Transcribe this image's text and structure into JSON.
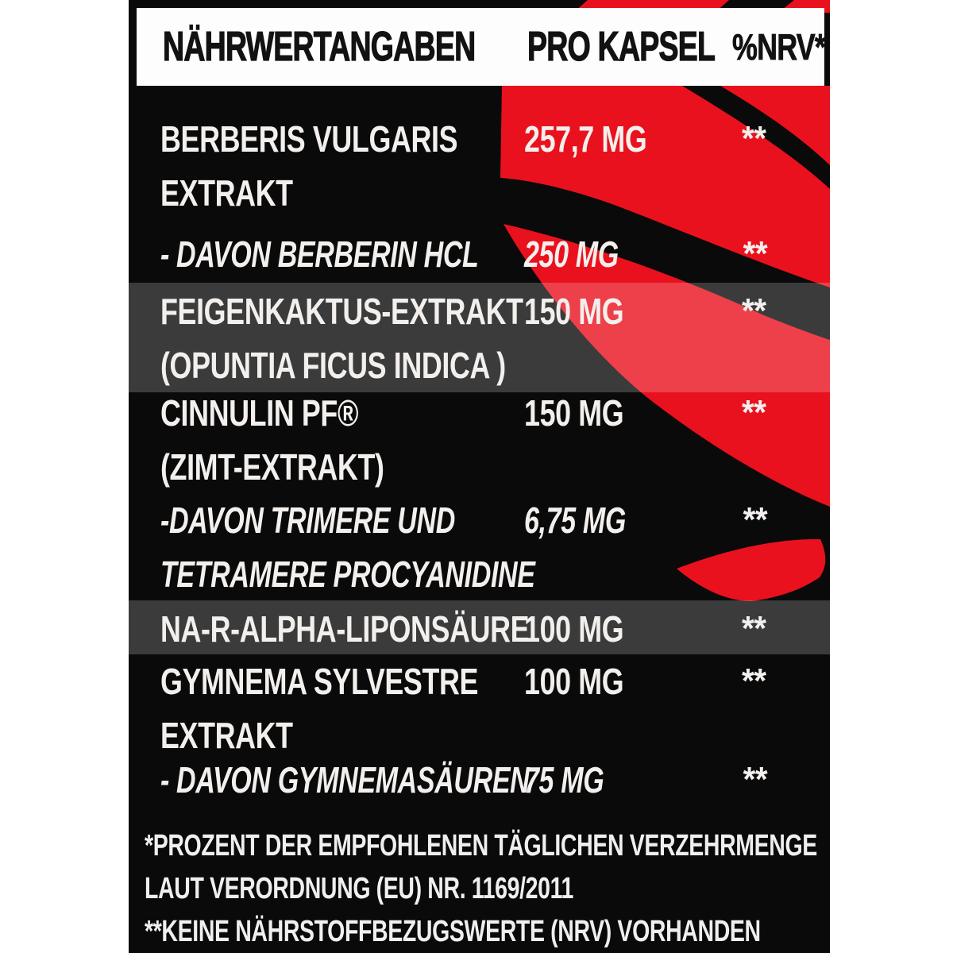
{
  "header": {
    "col_nutrient": "NÄHRWERTANGABEN",
    "col_amount": "PRO KAPSEL",
    "col_nrv": "%NRV*"
  },
  "table": {
    "rows": [
      {
        "name_lines": [
          "BERBERIS VULGARIS",
          "EXTRAKT"
        ],
        "amount": "257,7 MG",
        "nrv": "**",
        "style": "bold",
        "highlight": false
      },
      {
        "name_lines": [
          "- DAVON BERBERIN HCL"
        ],
        "amount": "250 MG",
        "nrv": "**",
        "style": "italic",
        "highlight": false
      },
      {
        "name_lines": [
          "FEIGENKAKTUS-EXTRAKT",
          "(OPUNTIA FICUS INDICA )"
        ],
        "amount": "150 MG",
        "nrv": "**",
        "style": "bold",
        "highlight": true
      },
      {
        "name_lines": [
          "CINNULIN PF®",
          "(ZIMT-EXTRAKT)"
        ],
        "amount": "150 MG",
        "nrv": "**",
        "style": "bold",
        "highlight": false
      },
      {
        "name_lines": [
          "-DAVON TRIMERE UND",
          "TETRAMERE PROCYANIDINE"
        ],
        "amount": "6,75 MG",
        "nrv": "**",
        "style": "italic",
        "highlight": false
      },
      {
        "name_lines": [
          "NA-R-ALPHA-LIPONSÄURE"
        ],
        "amount": "100 MG",
        "nrv": "**",
        "style": "bold",
        "highlight": true
      },
      {
        "name_lines": [
          "GYMNEMA SYLVESTRE",
          "EXTRAKT"
        ],
        "amount": "100 MG",
        "nrv": "**",
        "style": "bold",
        "highlight": false
      },
      {
        "name_lines": [
          "- DAVON GYMNEMASÄUREN"
        ],
        "amount": "75 MG",
        "nrv": "**",
        "style": "italic",
        "highlight": false
      }
    ]
  },
  "footnotes": [
    "*PROZENT DER EMPFOHLENEN TÄGLICHEN VERZEHRMENGE",
    "LAUT VERORDNUNG (EU) NR. 1169/2011",
    "**KEINE NÄHRSTOFFBEZUGSWERTE (NRV) VORHANDEN"
  ],
  "icons": {
    "artwork": "red-petal-burst"
  },
  "colors": {
    "accent_red": "#e9111d",
    "label_black": "#0a0a0a",
    "header_bg": "#fdfdfd",
    "row_text": "#f2efed",
    "highlight_overlay": "rgba(255,255,255,0.20)"
  }
}
